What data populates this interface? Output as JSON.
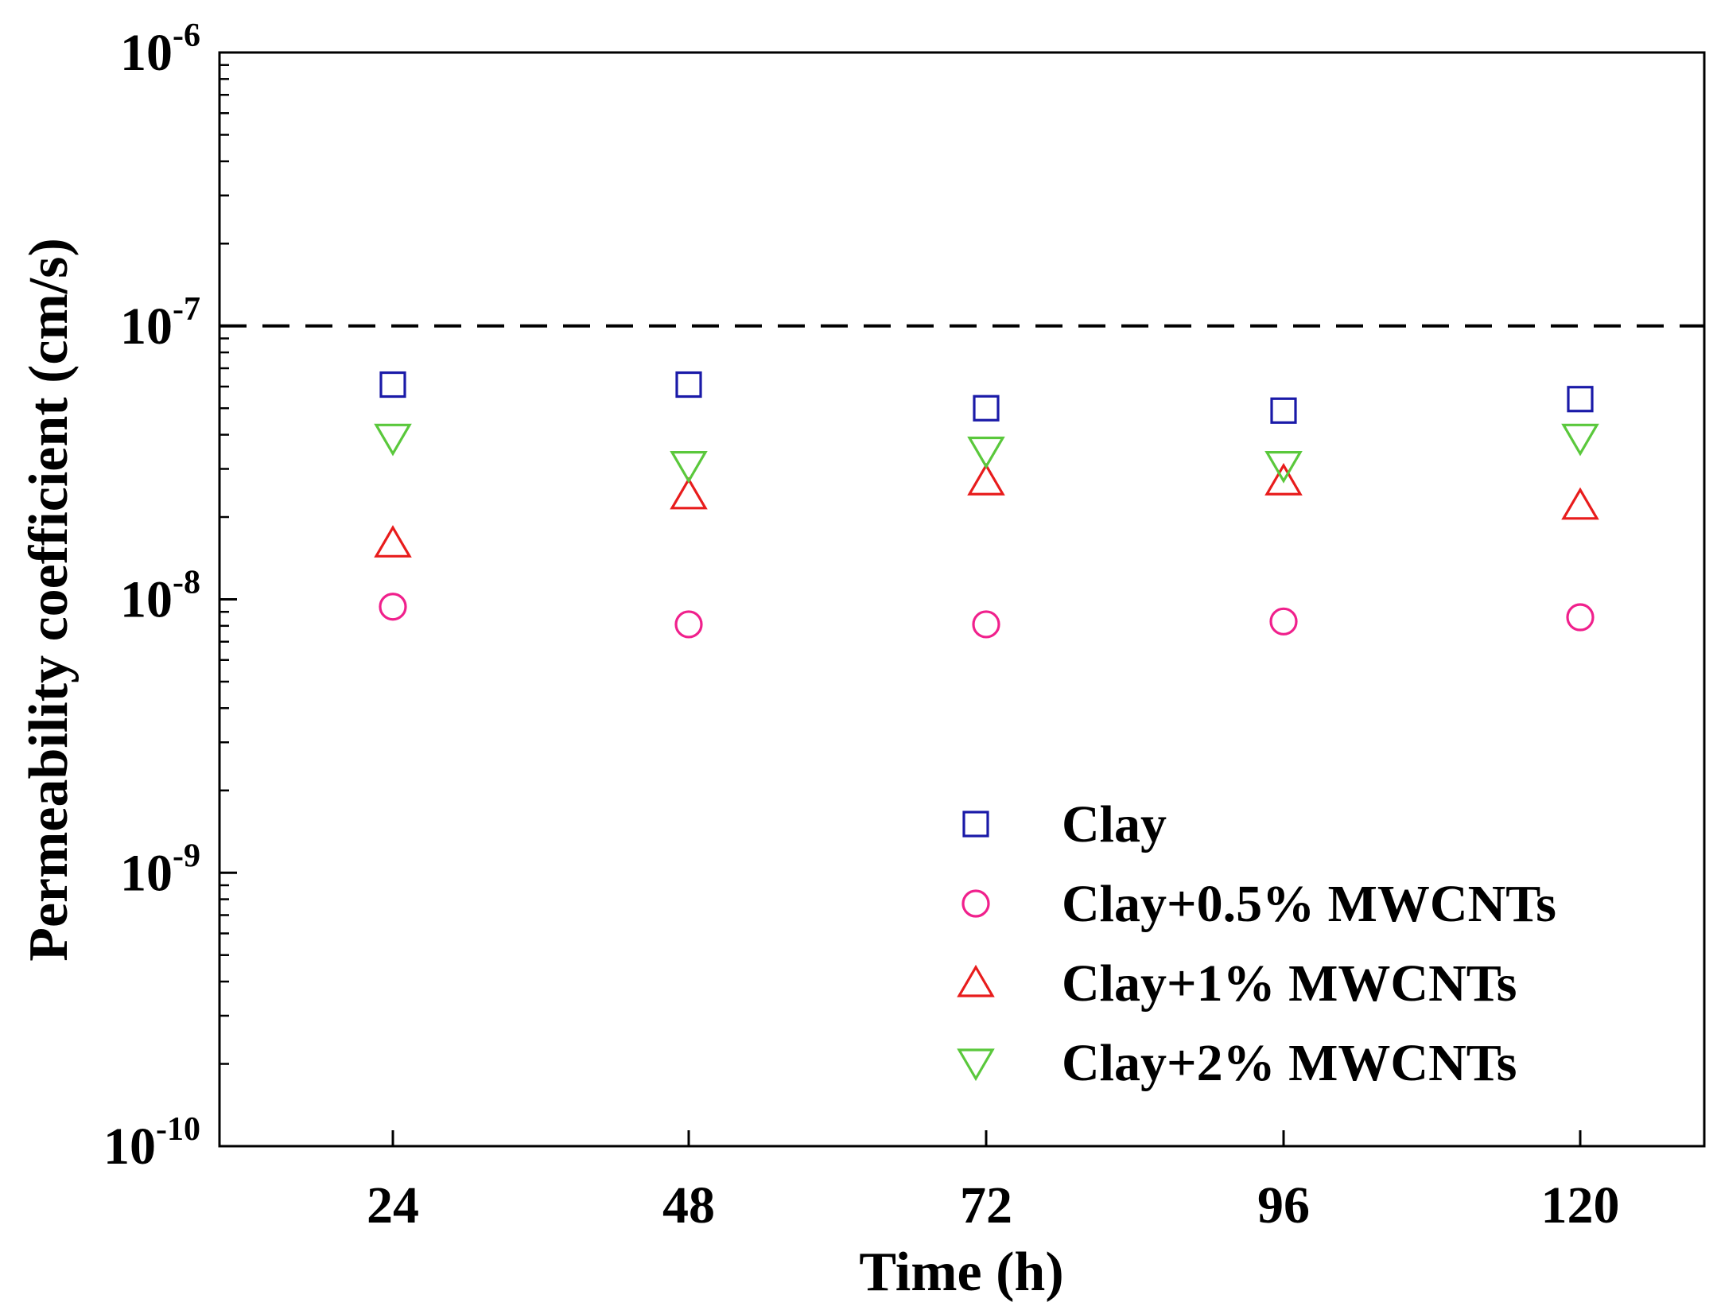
{
  "chart_data": {
    "type": "scatter",
    "title": "",
    "xlabel": "Time (h)",
    "ylabel": "Permeability coefficient (cm/s)",
    "yscale": "log",
    "ylim": [
      1e-10,
      1e-06
    ],
    "x": [
      24,
      48,
      72,
      96,
      120
    ],
    "x_tick_labels": [
      "24",
      "48",
      "72",
      "96",
      "120"
    ],
    "y_ticks": [
      {
        "value": 1e-06,
        "base": "10",
        "exp": "-6"
      },
      {
        "value": 1e-07,
        "base": "10",
        "exp": "-7"
      },
      {
        "value": 1e-08,
        "base": "10",
        "exp": "-8"
      },
      {
        "value": 1e-09,
        "base": "10",
        "exp": "-9"
      },
      {
        "value": 1e-10,
        "base": "10",
        "exp": "-10"
      }
    ],
    "reference_line": {
      "y": 1e-07,
      "style": "dashed",
      "color": "#000000"
    },
    "series": [
      {
        "name": "Clay",
        "marker": "square",
        "color": "#1a1aa8",
        "values": [
          6.1e-08,
          6.1e-08,
          5e-08,
          4.9e-08,
          5.4e-08
        ]
      },
      {
        "name": "Clay+0.5% MWCNTs",
        "marker": "circle",
        "color": "#f0208c",
        "values": [
          9.4e-09,
          8.1e-09,
          8.1e-09,
          8.3e-09,
          8.6e-09
        ]
      },
      {
        "name": "Clay+1% MWCNTs",
        "marker": "triangle-up",
        "color": "#e81c1c",
        "values": [
          1.6e-08,
          2.4e-08,
          2.7e-08,
          2.7e-08,
          2.2e-08
        ]
      },
      {
        "name": "Clay+2% MWCNTs",
        "marker": "triangle-down",
        "color": "#5ac83c",
        "values": [
          3.9e-08,
          3.1e-08,
          3.5e-08,
          3.1e-08,
          3.9e-08
        ]
      }
    ],
    "legend_position": "bottom-right",
    "grid": false
  }
}
